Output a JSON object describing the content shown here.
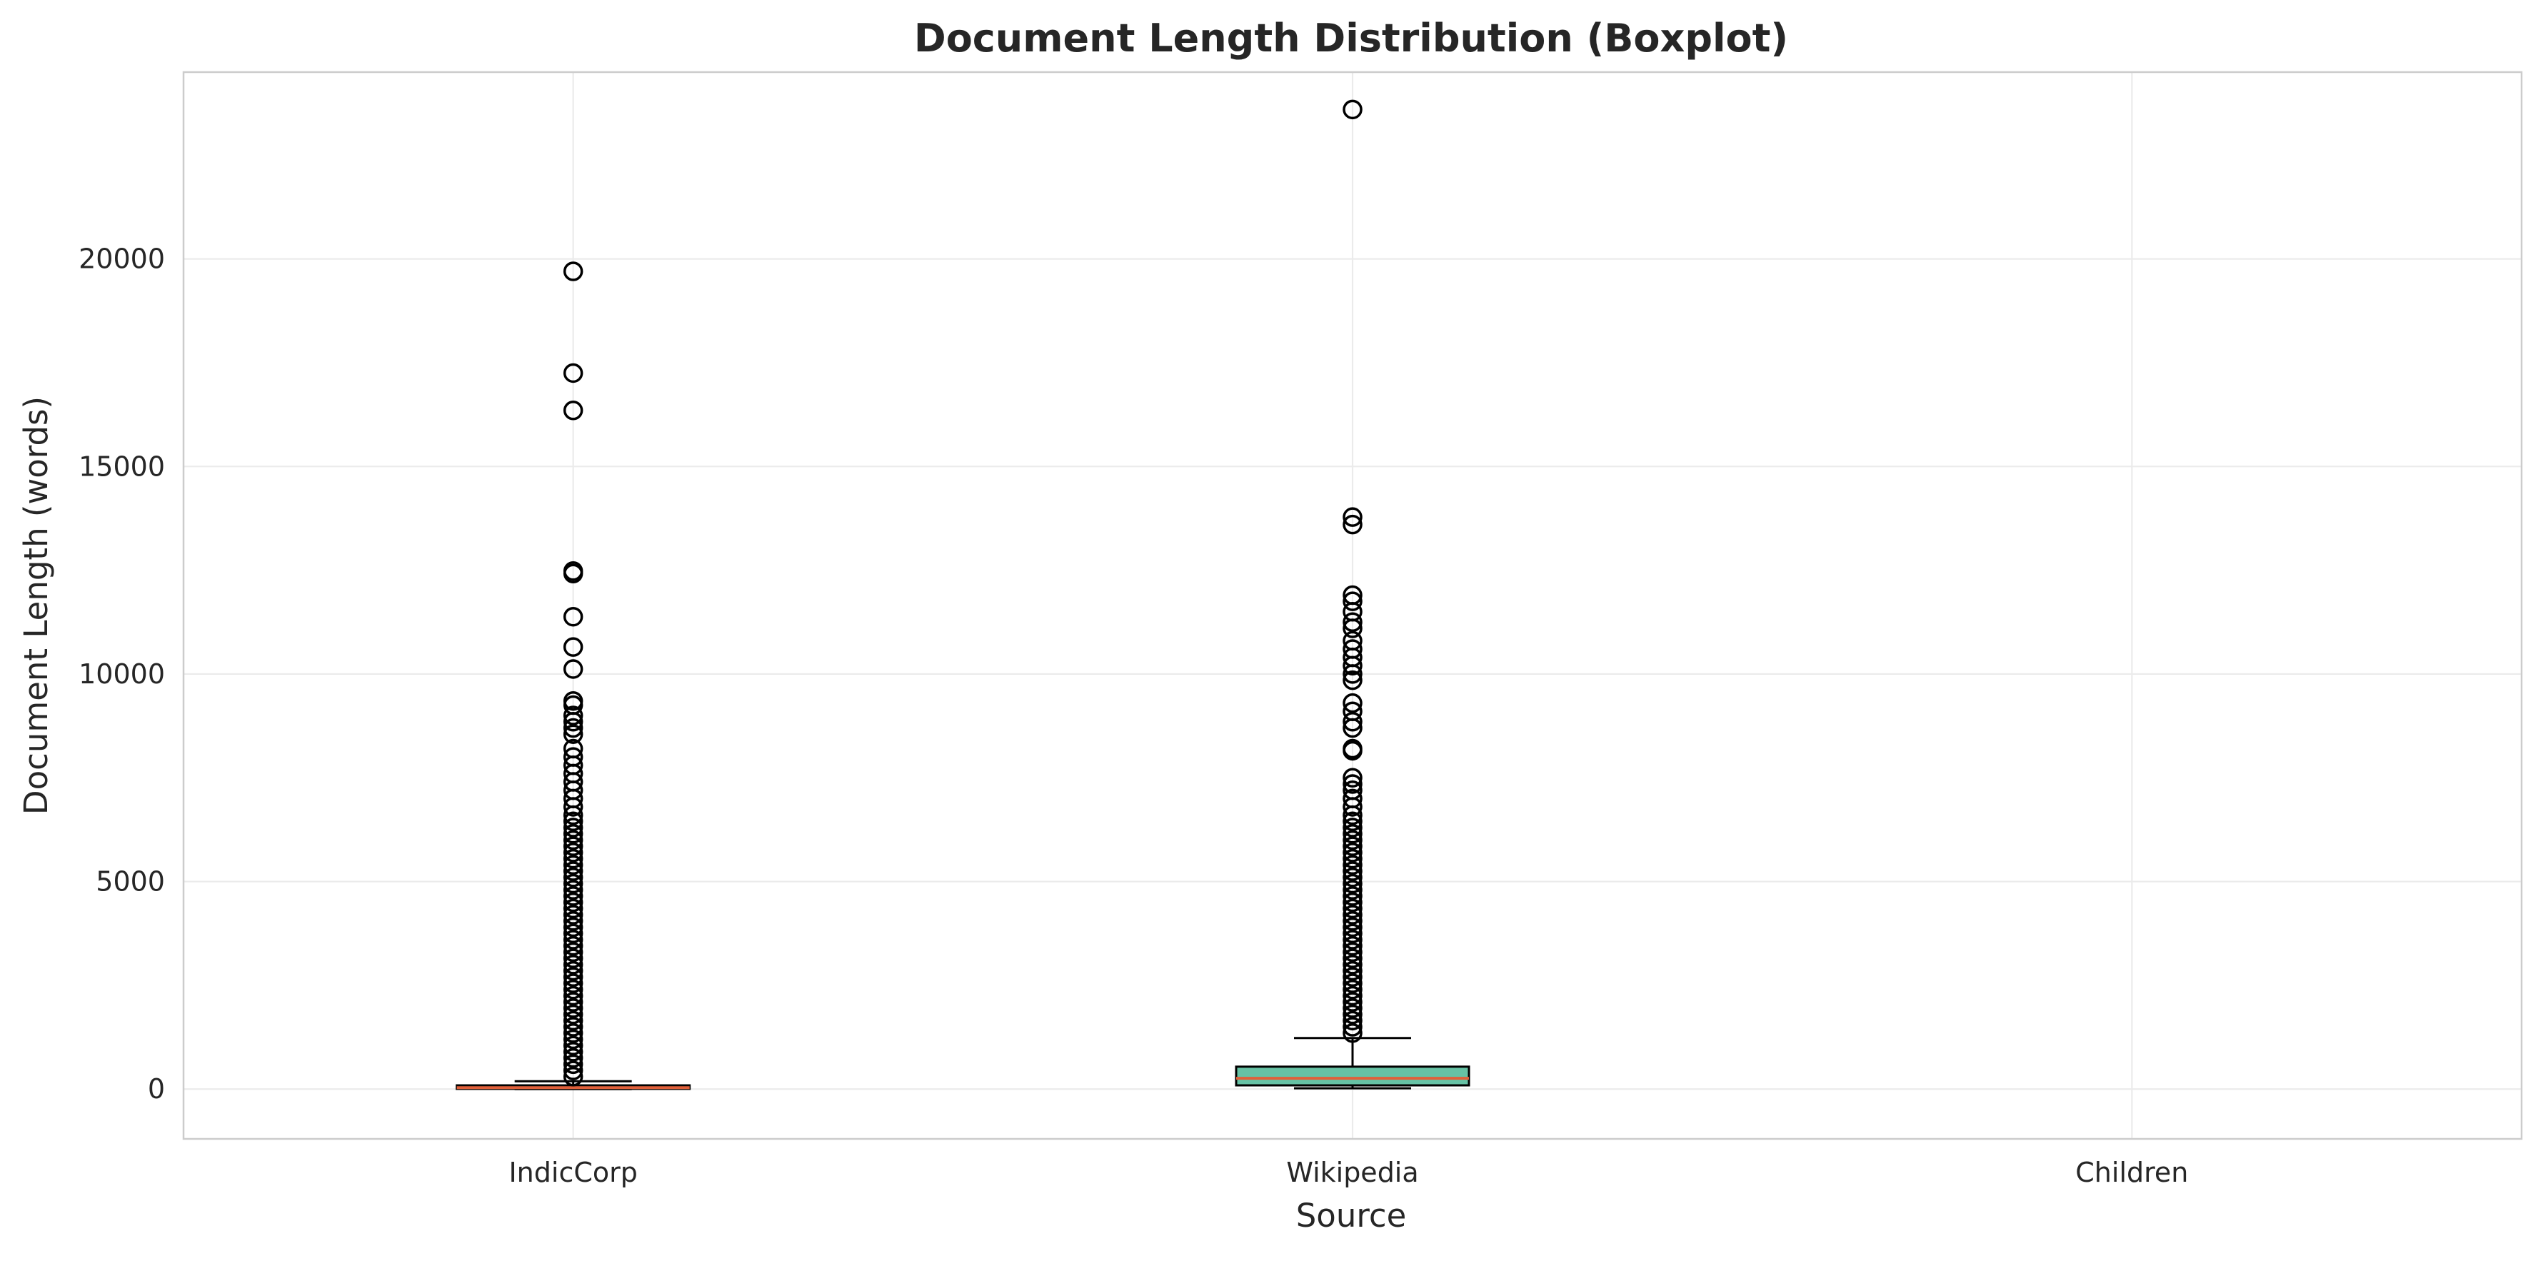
{
  "chart_data": {
    "type": "boxplot",
    "title": "Document Length Distribution (Boxplot)",
    "xlabel": "Source",
    "ylabel": "Document Length (words)",
    "ylim": [
      -1200,
      24500
    ],
    "yticks": [
      0,
      5000,
      10000,
      15000,
      20000
    ],
    "grid": true,
    "categories": [
      "IndicCorp",
      "Wikipedia",
      "Children"
    ],
    "boxes": [
      {
        "category": "IndicCorp",
        "color": "#fc8d62",
        "q1": 5,
        "median": 35,
        "q3": 90,
        "whisker_low": 0,
        "whisker_high": 190,
        "outliers": [
          19700,
          17250,
          16350,
          12480,
          12420,
          11380,
          10650,
          10120,
          9350,
          9250,
          9000,
          8850,
          8700,
          8550,
          8200,
          8000,
          7800,
          7600,
          7400,
          7200,
          7000,
          6800,
          6600,
          6450,
          6300,
          6150,
          6000,
          5850,
          5700,
          5550,
          5400,
          5250,
          5100,
          4950,
          4800,
          4650,
          4500,
          4350,
          4200,
          4050,
          3900,
          3750,
          3600,
          3450,
          3300,
          3150,
          3000,
          2850,
          2700,
          2550,
          2400,
          2250,
          2100,
          1950,
          1800,
          1650,
          1500,
          1350,
          1200,
          1050,
          900,
          750,
          600,
          450,
          300
        ]
      },
      {
        "category": "Wikipedia",
        "color": "#66c2a5",
        "q1": 90,
        "median": 260,
        "q3": 540,
        "whisker_low": 20,
        "whisker_high": 1230,
        "outliers": [
          23600,
          13780,
          13600,
          11900,
          11750,
          11500,
          11250,
          11100,
          10800,
          10600,
          10400,
          10200,
          10000,
          9850,
          9300,
          9100,
          8850,
          8700,
          8200,
          8150,
          7500,
          7350,
          7200,
          7000,
          6800,
          6600,
          6450,
          6300,
          6150,
          6000,
          5850,
          5700,
          5550,
          5400,
          5250,
          5100,
          4950,
          4800,
          4650,
          4500,
          4350,
          4200,
          4050,
          3900,
          3750,
          3600,
          3450,
          3300,
          3150,
          3000,
          2850,
          2700,
          2550,
          2400,
          2250,
          2100,
          1950,
          1800,
          1650,
          1500,
          1350
        ]
      },
      {
        "category": "Children",
        "color": "#8da0cb",
        "empty": true
      }
    ]
  }
}
